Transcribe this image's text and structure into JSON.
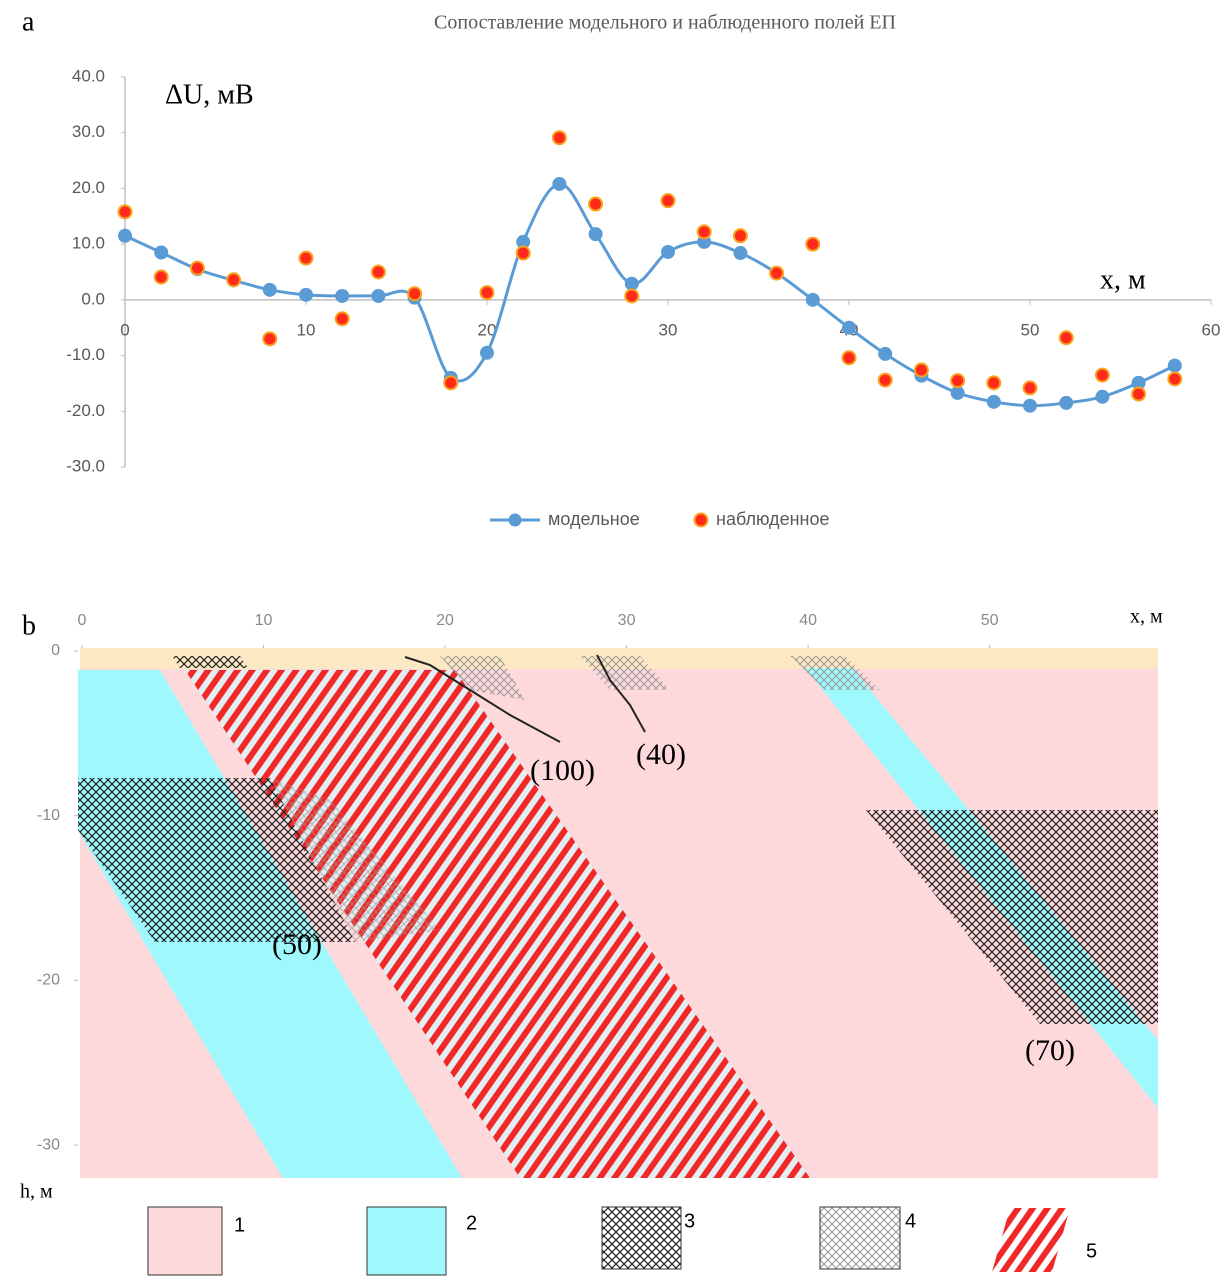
{
  "panel_labels": [
    "a",
    "b"
  ],
  "chart_data": [
    {
      "type": "line",
      "title": "Сопоставление модельного и наблюденного полей ЕП",
      "xlabel": "x, м",
      "ylabel": "ΔU, мВ",
      "x": [
        0,
        2,
        4,
        6,
        8,
        10,
        12,
        14,
        16,
        18,
        20,
        22,
        24,
        26,
        28,
        30,
        32,
        34,
        36,
        38,
        40,
        42,
        44,
        46,
        48,
        50,
        52,
        54,
        56,
        58
      ],
      "xlim": [
        0,
        60
      ],
      "xticks": [
        0,
        10,
        20,
        30,
        40,
        50,
        60
      ],
      "ylim": [
        -30,
        40
      ],
      "yticks": [
        {
          "value": -30,
          "label": "-30.0"
        },
        {
          "value": -20,
          "label": "-20.0"
        },
        {
          "value": -10,
          "label": "-10.0"
        },
        {
          "value": 0,
          "label": "0.0"
        },
        {
          "value": 10,
          "label": "10.0"
        },
        {
          "value": 20,
          "label": "20.0"
        },
        {
          "value": 30,
          "label": "30.0"
        },
        {
          "value": 40,
          "label": "40.0"
        }
      ],
      "grid": false,
      "legend": "bottom",
      "series": [
        {
          "name": "модельное",
          "color": "#5b9bd5",
          "line": true,
          "values": [
            11.5,
            8.5,
            5.5,
            3.5,
            1.8,
            0.9,
            0.7,
            0.7,
            0.4,
            -14.0,
            -9.5,
            10.4,
            20.8,
            11.8,
            2.9,
            8.6,
            10.4,
            8.4,
            4.8,
            0.0,
            -5.0,
            -9.7,
            -13.6,
            -16.7,
            -18.3,
            -19.0,
            -18.5,
            -17.4,
            -14.9,
            -11.8
          ]
        },
        {
          "name": "наблюденное",
          "color": "#ff2a1a",
          "edge": "#f6a21e",
          "line": false,
          "values": [
            15.8,
            4.1,
            5.7,
            3.6,
            -7.0,
            7.5,
            -3.4,
            5.0,
            1.1,
            -14.9,
            1.3,
            8.4,
            29.1,
            17.2,
            0.7,
            17.8,
            12.2,
            11.5,
            4.8,
            10.0,
            -10.4,
            -14.4,
            -12.6,
            -14.5,
            -14.9,
            -15.8,
            -6.8,
            -13.5,
            -16.9,
            -14.2
          ]
        }
      ]
    },
    {
      "type": "section",
      "xlabel": "x, м",
      "ylabel": "h, м",
      "xlim": [
        0,
        59
      ],
      "xticks": [
        0,
        10,
        20,
        30,
        40,
        50
      ],
      "ylim": [
        -32,
        0
      ],
      "yticks": [
        0,
        -10,
        -20,
        -30
      ],
      "annotations": [
        "(100)",
        "(40)",
        "(50)",
        "(70)"
      ],
      "legend": [
        "1",
        "2",
        "3",
        "4",
        "5"
      ]
    }
  ]
}
